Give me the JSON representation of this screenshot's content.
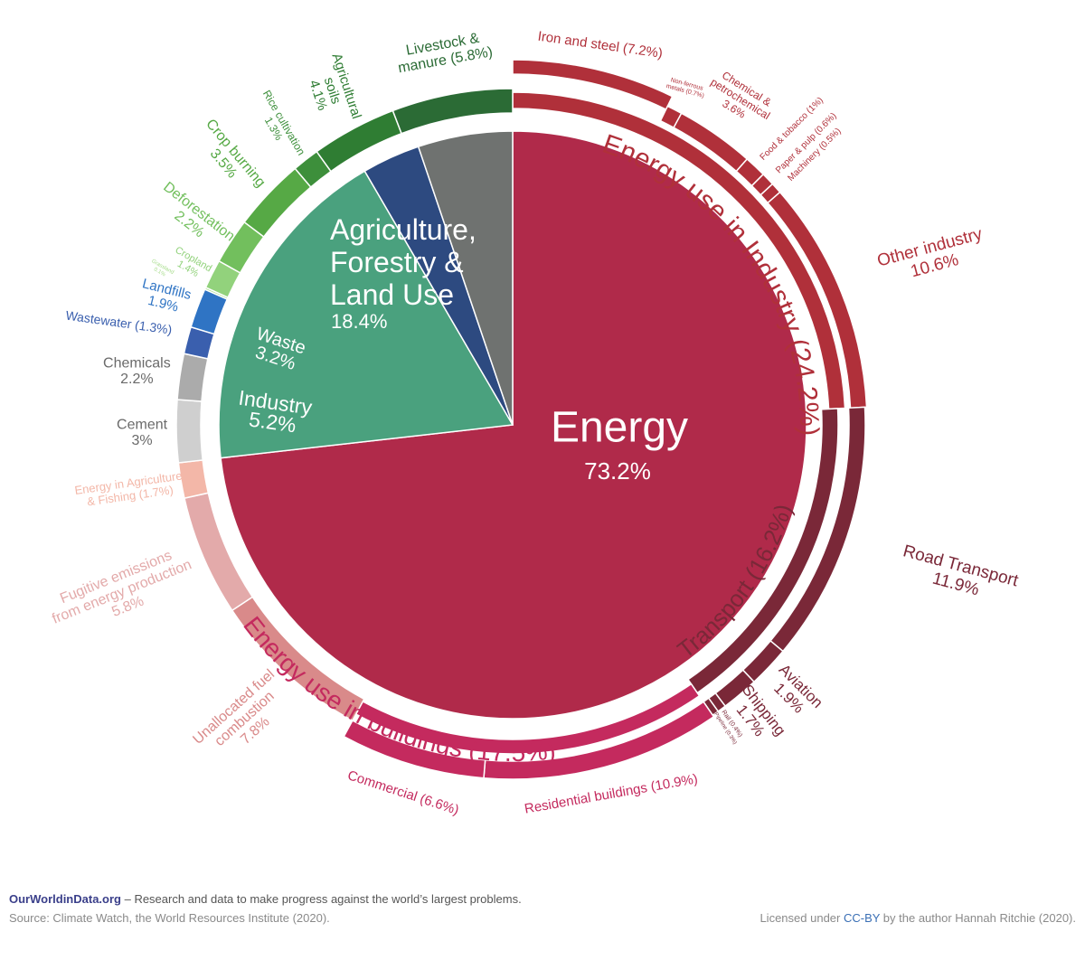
{
  "chart_data": {
    "type": "pie",
    "title": "",
    "inner": [
      {
        "label": "Energy",
        "value": 73.2,
        "color": "#b02a4a"
      },
      {
        "label": "Agriculture, Forestry & Land Use",
        "value": 18.4,
        "color": "#4aa17e"
      },
      {
        "label": "Waste",
        "value": 3.2,
        "color": "#2d4a80"
      },
      {
        "label": "Industry",
        "value": 5.2,
        "color": "#6f7270"
      }
    ],
    "groups": [
      {
        "label": "Energy use in Industry (24.2%)",
        "value": 24.2,
        "color": "#b0303a"
      },
      {
        "label": "Transport (16.2%)",
        "value": 16.2,
        "color": "#7a2838"
      },
      {
        "label": "Energy use in buildings (17.5%)",
        "value": 17.5,
        "color": "#c42a5e"
      }
    ],
    "segments": [
      {
        "label": "Iron and steel (7.2%)",
        "value": 7.2,
        "color": "#b0303a"
      },
      {
        "label": "Non-ferrous metals (0.7%)",
        "value": 0.7,
        "color": "#b0303a"
      },
      {
        "label": "Chemical & petrochemical 3.6%",
        "value": 3.6,
        "color": "#b0303a"
      },
      {
        "label": "Food & tobacco (1%)",
        "value": 1.0,
        "color": "#b0303a"
      },
      {
        "label": "Paper & pulp (0.6%)",
        "value": 0.6,
        "color": "#b0303a"
      },
      {
        "label": "Machinery (0.5%)",
        "value": 0.5,
        "color": "#b0303a"
      },
      {
        "label": "Other industry 10.6%",
        "value": 10.6,
        "color": "#b0303a"
      },
      {
        "label": "Road Transport 11.9%",
        "value": 11.9,
        "color": "#7a2838"
      },
      {
        "label": "Aviation 1.9%",
        "value": 1.9,
        "color": "#7a2838"
      },
      {
        "label": "Shipping 1.7%",
        "value": 1.7,
        "color": "#7a2838"
      },
      {
        "label": "Rail (0.4%)",
        "value": 0.4,
        "color": "#7a2838"
      },
      {
        "label": "Pipeline (0.3%)",
        "value": 0.3,
        "color": "#7a2838"
      },
      {
        "label": "Residential buildings (10.9%)",
        "value": 10.9,
        "color": "#c42a5e"
      },
      {
        "label": "Commercial (6.6%)",
        "value": 6.6,
        "color": "#c42a5e"
      },
      {
        "label": "Unallocated fuel combustion 7.8%",
        "value": 7.8,
        "color": "#d98a8a"
      },
      {
        "label": "Fugitive emissions from energy production 5.8%",
        "value": 5.8,
        "color": "#e3aaaa"
      },
      {
        "label": "Energy in Agriculture & Fishing (1.7%)",
        "value": 1.7,
        "color": "#f3b7a8"
      },
      {
        "label": "Cement 3%",
        "value": 3.0,
        "color": "#cfcfcf"
      },
      {
        "label": "Chemicals 2.2%",
        "value": 2.2,
        "color": "#ababab"
      },
      {
        "label": "Wastewater (1.3%)",
        "value": 1.3,
        "color": "#3a5fae"
      },
      {
        "label": "Landfills 1.9%",
        "value": 1.9,
        "color": "#2f74c4"
      },
      {
        "label": "Grassland 0.1%",
        "value": 0.1,
        "color": "#a6dc8a"
      },
      {
        "label": "Cropland 1.4%",
        "value": 1.4,
        "color": "#92d27c"
      },
      {
        "label": "Deforestation 2.2%",
        "value": 2.2,
        "color": "#72bf5d"
      },
      {
        "label": "Crop burning 3.5%",
        "value": 3.5,
        "color": "#56a945"
      },
      {
        "label": "Rice cultivation 1.3%",
        "value": 1.3,
        "color": "#3d8f3b"
      },
      {
        "label": "Agricultural soils 4.1%",
        "value": 4.1,
        "color": "#2f7d33"
      },
      {
        "label": "Livestock & manure (5.8%)",
        "value": 5.8,
        "color": "#2b6b35"
      }
    ]
  },
  "footer": {
    "brand": "OurWorldinData.org",
    "tagline": " – Research and data to make progress against the world’s largest problems.",
    "source": "Source: Climate Watch, the World Resources Institute (2020).",
    "license_pre": "Licensed under ",
    "license_cc": "CC-BY",
    "license_post": " by the author Hannah Ritchie (2020)."
  }
}
